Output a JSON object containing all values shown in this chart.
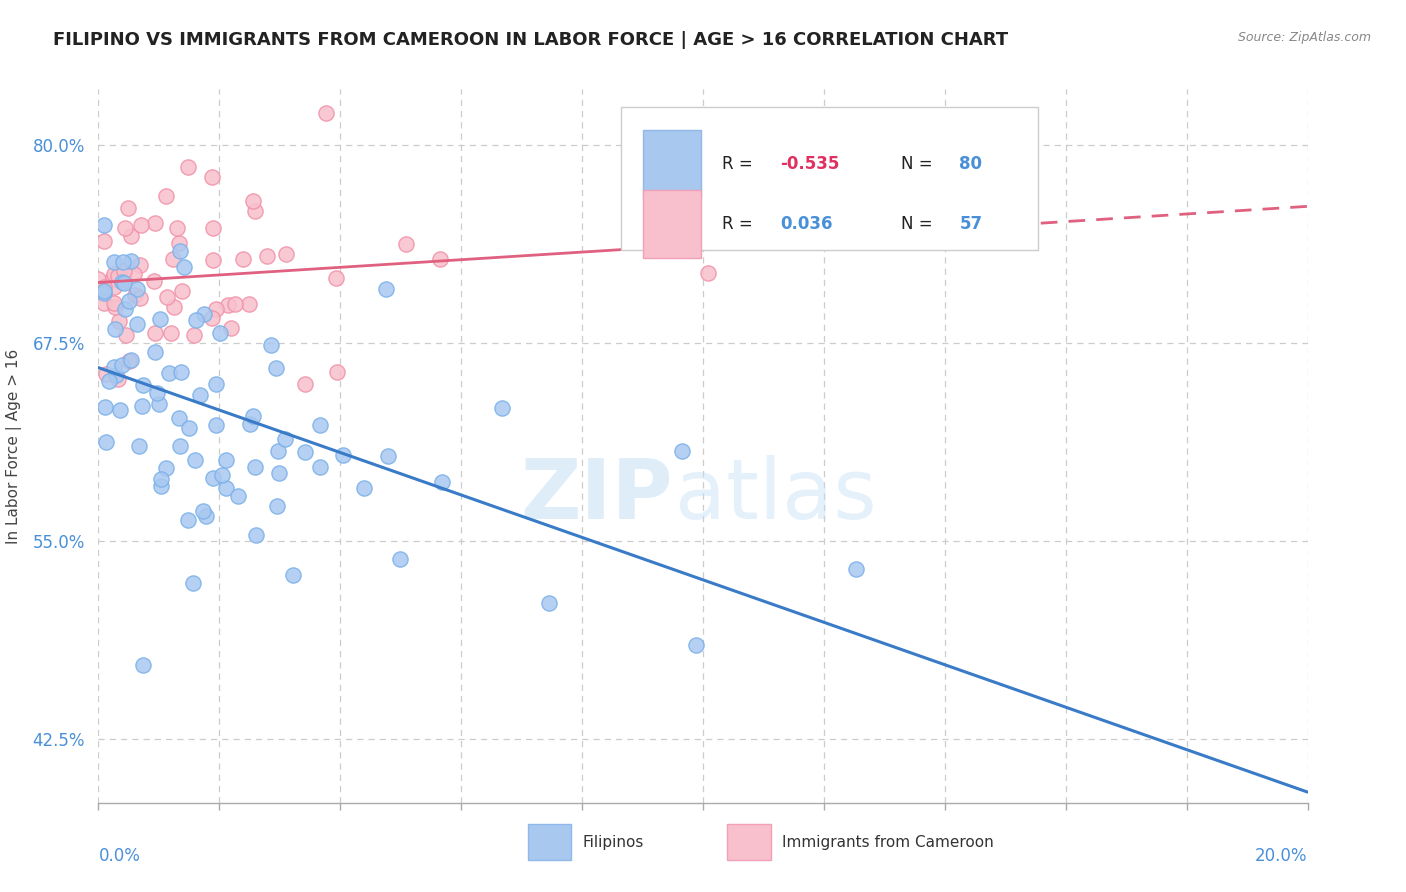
{
  "title": "FILIPINO VS IMMIGRANTS FROM CAMEROON IN LABOR FORCE | AGE > 16 CORRELATION CHART",
  "source_text": "Source: ZipAtlas.com",
  "ylabel": "In Labor Force | Age > 16",
  "yticks": [
    0.425,
    0.55,
    0.675,
    0.8
  ],
  "ytick_labels": [
    "42.5%",
    "55.0%",
    "67.5%",
    "80.0%"
  ],
  "xmin": 0.0,
  "xmax": 0.2,
  "ymin": 0.385,
  "ymax": 0.835,
  "blue_R": -0.535,
  "blue_N": 80,
  "pink_R": 0.036,
  "pink_N": 57,
  "blue_marker_color": "#a8c8f0",
  "blue_marker_edge": "#7ab0e8",
  "pink_marker_color": "#f8c0cc",
  "pink_marker_edge": "#f090a8",
  "blue_line_color": "#3a7bc8",
  "pink_line_color": "#e06080",
  "legend_label_blue": "Filipinos",
  "legend_label_pink": "Immigrants from Cameroon",
  "watermark_zip": "ZIP",
  "watermark_atlas": "atlas",
  "grid_color": "#cccccc",
  "title_color": "#222222",
  "axis_label_color": "#4a90d9",
  "legend_text_color": "#222222",
  "legend_N_color": "#4a90d9",
  "legend_R_neg_color": "#e03060",
  "legend_R_pos_color": "#4a90d9"
}
